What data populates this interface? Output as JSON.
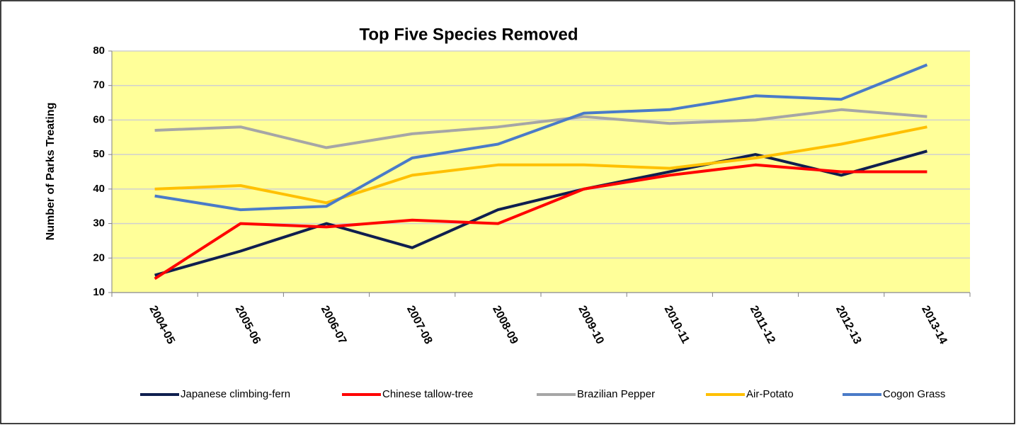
{
  "chart_data": {
    "type": "line",
    "title": "Top Five Species Removed",
    "y_label": "Number of Parks Treating",
    "categories": [
      "2004-05",
      "2005-06",
      "2006-07",
      "2007-08",
      "2008-09",
      "2009-10",
      "2010-11",
      "2011-12",
      "2012-13",
      "2013-14"
    ],
    "series": [
      {
        "name": "Japanese climbing-fern",
        "color": "#0f1f4f",
        "values": [
          15,
          22,
          30,
          23,
          34,
          40,
          45,
          50,
          44,
          51
        ]
      },
      {
        "name": "Chinese tallow-tree",
        "color": "#ff0000",
        "values": [
          14,
          30,
          29,
          31,
          30,
          40,
          44,
          47,
          45,
          45
        ]
      },
      {
        "name": "Brazilian Pepper",
        "color": "#a6a6a6",
        "values": [
          57,
          58,
          52,
          56,
          58,
          61,
          59,
          60,
          63,
          61
        ]
      },
      {
        "name": "Air-Potato",
        "color": "#ffc000",
        "values": [
          40,
          41,
          36,
          44,
          47,
          47,
          46,
          49,
          53,
          58
        ]
      },
      {
        "name": "Cogon Grass",
        "color": "#4a7bc8",
        "values": [
          38,
          34,
          35,
          49,
          53,
          62,
          63,
          67,
          66,
          76
        ]
      }
    ],
    "ylim": [
      10,
      80
    ],
    "yticks": [
      10,
      20,
      30,
      40,
      50,
      60,
      70,
      80
    ],
    "grid": true,
    "plot_background": "#ffff99",
    "legend": "bottom"
  }
}
